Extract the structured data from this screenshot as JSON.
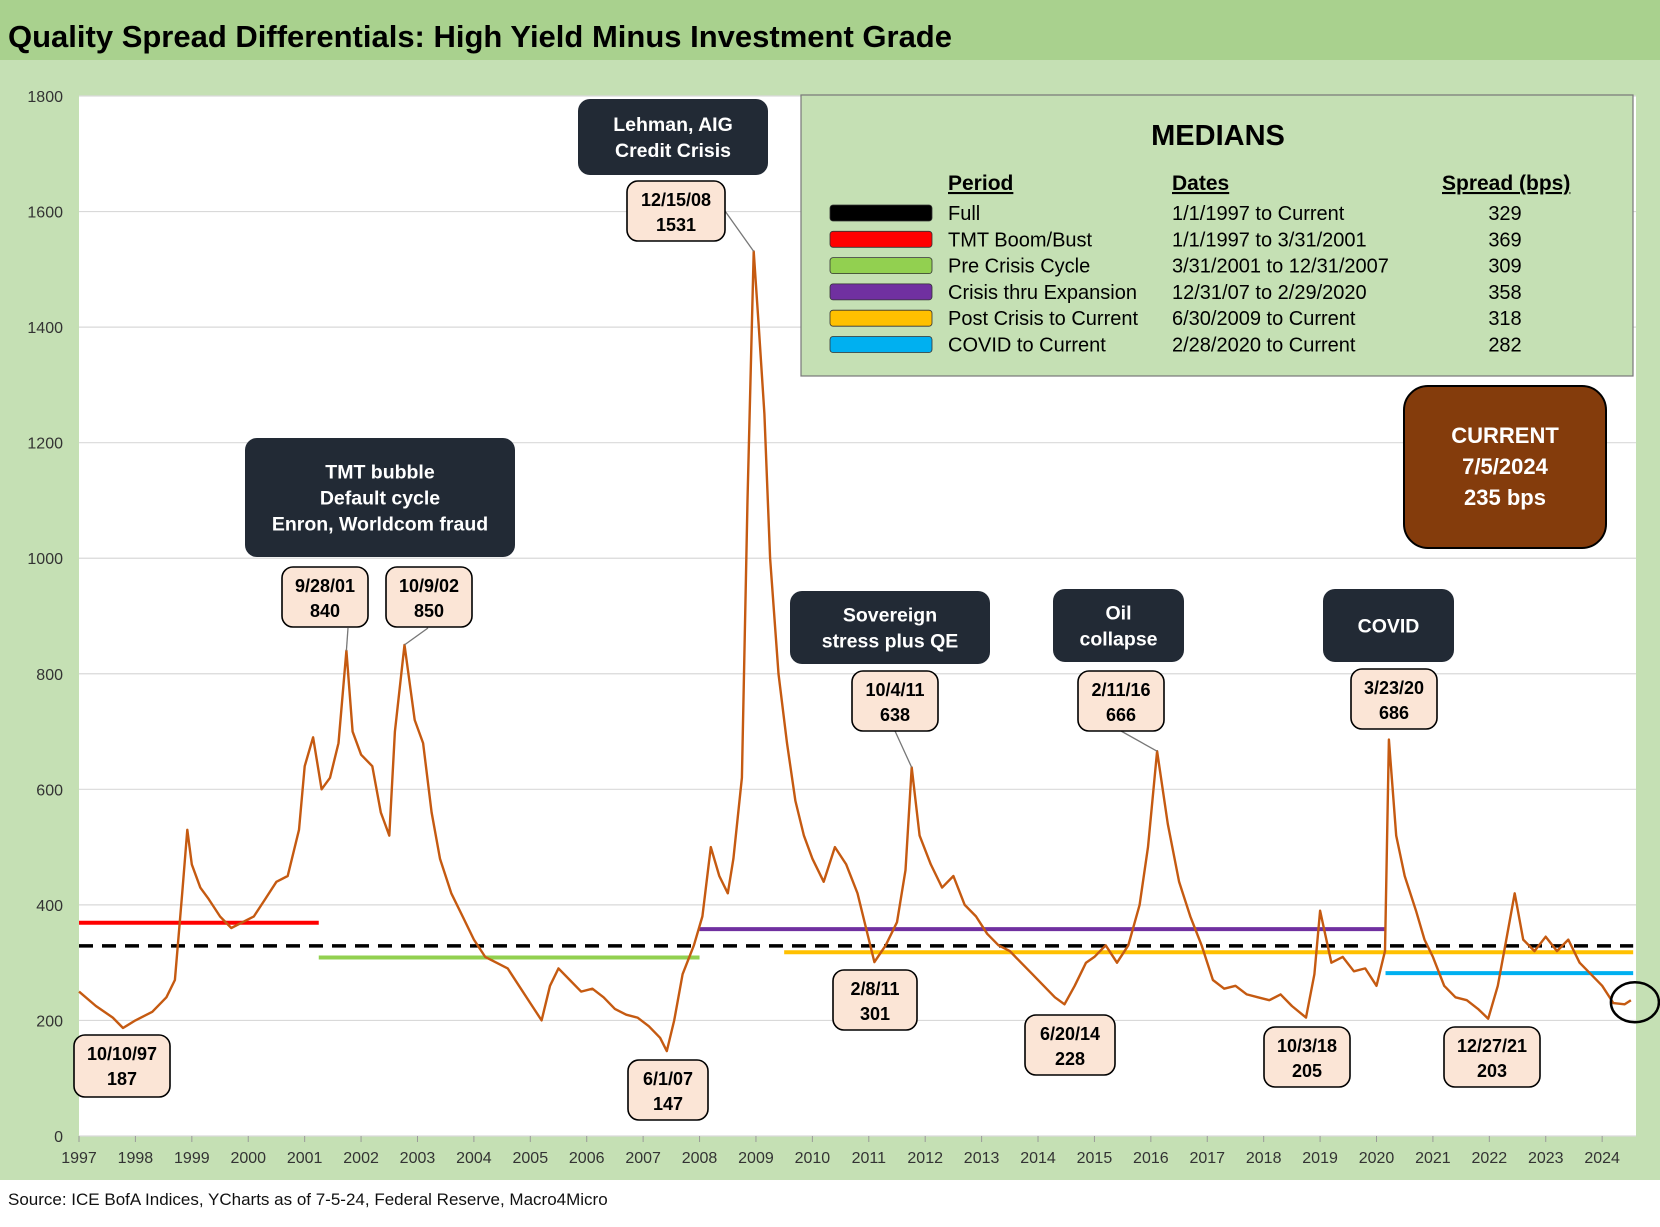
{
  "title": "Quality Spread Differentials: High Yield Minus Investment Grade",
  "source": "Source: ICE BofA Indices, YCharts as of 7-5-24, Federal Reserve, Macro4Micro",
  "colors": {
    "header_bg": "#a9d18e",
    "panel_bg": "#c5e0b4",
    "plot_bg": "#ffffff",
    "series": "#c55a11",
    "callout_dark": "#222a35",
    "label_bg": "#fbe5d6",
    "current_bg": "#843c0c"
  },
  "chart_data": {
    "type": "line",
    "xlabel": "",
    "ylabel": "",
    "ylim": [
      0,
      1800
    ],
    "xlim": [
      1997,
      2024.6
    ],
    "yticks": [
      "0",
      "200",
      "400",
      "600",
      "800",
      "1000",
      "1200",
      "1400",
      "1600",
      "1800"
    ],
    "xticks": [
      "1997",
      "1998",
      "1999",
      "2000",
      "2001",
      "2002",
      "2003",
      "2004",
      "2005",
      "2006",
      "2007",
      "2008",
      "2009",
      "2010",
      "2011",
      "2012",
      "2013",
      "2014",
      "2015",
      "2016",
      "2017",
      "2018",
      "2019",
      "2020",
      "2021",
      "2022",
      "2023",
      "2024"
    ],
    "grid": true,
    "series": [
      {
        "color": "#c55a11",
        "points": [
          [
            1997.0,
            250
          ],
          [
            1997.3,
            225
          ],
          [
            1997.6,
            205
          ],
          [
            1997.78,
            187
          ],
          [
            1998.0,
            200
          ],
          [
            1998.3,
            215
          ],
          [
            1998.55,
            240
          ],
          [
            1998.7,
            270
          ],
          [
            1998.83,
            420
          ],
          [
            1998.92,
            530
          ],
          [
            1999.0,
            470
          ],
          [
            1999.15,
            430
          ],
          [
            1999.3,
            410
          ],
          [
            1999.5,
            380
          ],
          [
            1999.7,
            360
          ],
          [
            1999.9,
            370
          ],
          [
            2000.1,
            380
          ],
          [
            2000.3,
            410
          ],
          [
            2000.5,
            440
          ],
          [
            2000.7,
            450
          ],
          [
            2000.9,
            530
          ],
          [
            2001.0,
            640
          ],
          [
            2001.15,
            690
          ],
          [
            2001.3,
            600
          ],
          [
            2001.45,
            620
          ],
          [
            2001.6,
            680
          ],
          [
            2001.74,
            840
          ],
          [
            2001.85,
            700
          ],
          [
            2002.0,
            660
          ],
          [
            2002.2,
            640
          ],
          [
            2002.35,
            560
          ],
          [
            2002.5,
            520
          ],
          [
            2002.6,
            700
          ],
          [
            2002.77,
            850
          ],
          [
            2002.95,
            720
          ],
          [
            2003.1,
            680
          ],
          [
            2003.25,
            560
          ],
          [
            2003.4,
            480
          ],
          [
            2003.6,
            420
          ],
          [
            2003.8,
            380
          ],
          [
            2004.0,
            340
          ],
          [
            2004.2,
            310
          ],
          [
            2004.4,
            300
          ],
          [
            2004.6,
            290
          ],
          [
            2004.8,
            260
          ],
          [
            2005.0,
            230
          ],
          [
            2005.2,
            200
          ],
          [
            2005.35,
            260
          ],
          [
            2005.5,
            290
          ],
          [
            2005.7,
            270
          ],
          [
            2005.9,
            250
          ],
          [
            2006.1,
            255
          ],
          [
            2006.3,
            240
          ],
          [
            2006.5,
            220
          ],
          [
            2006.7,
            210
          ],
          [
            2006.9,
            205
          ],
          [
            2007.1,
            190
          ],
          [
            2007.3,
            170
          ],
          [
            2007.42,
            147
          ],
          [
            2007.55,
            200
          ],
          [
            2007.7,
            280
          ],
          [
            2007.9,
            330
          ],
          [
            2008.05,
            380
          ],
          [
            2008.2,
            500
          ],
          [
            2008.35,
            450
          ],
          [
            2008.5,
            420
          ],
          [
            2008.6,
            480
          ],
          [
            2008.75,
            620
          ],
          [
            2008.85,
            1100
          ],
          [
            2008.96,
            1531
          ],
          [
            2009.05,
            1400
          ],
          [
            2009.15,
            1250
          ],
          [
            2009.25,
            1000
          ],
          [
            2009.4,
            800
          ],
          [
            2009.55,
            680
          ],
          [
            2009.7,
            580
          ],
          [
            2009.85,
            520
          ],
          [
            2010.0,
            480
          ],
          [
            2010.2,
            440
          ],
          [
            2010.4,
            500
          ],
          [
            2010.6,
            470
          ],
          [
            2010.8,
            420
          ],
          [
            2010.95,
            360
          ],
          [
            2011.1,
            301
          ],
          [
            2011.3,
            330
          ],
          [
            2011.5,
            370
          ],
          [
            2011.65,
            460
          ],
          [
            2011.76,
            638
          ],
          [
            2011.9,
            520
          ],
          [
            2012.1,
            470
          ],
          [
            2012.3,
            430
          ],
          [
            2012.5,
            450
          ],
          [
            2012.7,
            400
          ],
          [
            2012.9,
            380
          ],
          [
            2013.1,
            350
          ],
          [
            2013.3,
            330
          ],
          [
            2013.5,
            320
          ],
          [
            2013.7,
            300
          ],
          [
            2013.9,
            280
          ],
          [
            2014.1,
            260
          ],
          [
            2014.3,
            240
          ],
          [
            2014.47,
            228
          ],
          [
            2014.65,
            260
          ],
          [
            2014.85,
            300
          ],
          [
            2015.0,
            310
          ],
          [
            2015.2,
            330
          ],
          [
            2015.4,
            300
          ],
          [
            2015.6,
            330
          ],
          [
            2015.8,
            400
          ],
          [
            2015.95,
            500
          ],
          [
            2016.11,
            666
          ],
          [
            2016.3,
            540
          ],
          [
            2016.5,
            440
          ],
          [
            2016.7,
            380
          ],
          [
            2016.9,
            330
          ],
          [
            2017.1,
            270
          ],
          [
            2017.3,
            255
          ],
          [
            2017.5,
            260
          ],
          [
            2017.7,
            245
          ],
          [
            2017.9,
            240
          ],
          [
            2018.1,
            235
          ],
          [
            2018.3,
            245
          ],
          [
            2018.5,
            225
          ],
          [
            2018.75,
            205
          ],
          [
            2018.9,
            280
          ],
          [
            2019.0,
            390
          ],
          [
            2019.2,
            300
          ],
          [
            2019.4,
            310
          ],
          [
            2019.6,
            285
          ],
          [
            2019.8,
            290
          ],
          [
            2020.0,
            260
          ],
          [
            2020.15,
            320
          ],
          [
            2020.22,
            686
          ],
          [
            2020.35,
            520
          ],
          [
            2020.5,
            450
          ],
          [
            2020.7,
            390
          ],
          [
            2020.85,
            340
          ],
          [
            2021.0,
            310
          ],
          [
            2021.2,
            260
          ],
          [
            2021.4,
            240
          ],
          [
            2021.6,
            235
          ],
          [
            2021.8,
            220
          ],
          [
            2021.98,
            203
          ],
          [
            2022.15,
            260
          ],
          [
            2022.3,
            340
          ],
          [
            2022.45,
            420
          ],
          [
            2022.6,
            340
          ],
          [
            2022.8,
            320
          ],
          [
            2023.0,
            345
          ],
          [
            2023.2,
            320
          ],
          [
            2023.4,
            340
          ],
          [
            2023.6,
            300
          ],
          [
            2023.8,
            280
          ],
          [
            2024.0,
            260
          ],
          [
            2024.2,
            230
          ],
          [
            2024.4,
            228
          ],
          [
            2024.51,
            235
          ]
        ]
      }
    ],
    "median_lines": [
      {
        "label": "Full",
        "color": "#000000",
        "value": 329,
        "start": 1997.0,
        "end": 2024.55,
        "dashed": true
      },
      {
        "label": "TMT Boom/Bust",
        "color": "#ff0000",
        "value": 369,
        "start": 1997.0,
        "end": 2001.25,
        "dashed": false
      },
      {
        "label": "Pre Crisis Cycle",
        "color": "#92d050",
        "value": 309,
        "start": 2001.25,
        "end": 2008.0,
        "dashed": false
      },
      {
        "label": "Crisis thru Expansion",
        "color": "#7030a0",
        "value": 358,
        "start": 2008.0,
        "end": 2020.16,
        "dashed": false
      },
      {
        "label": "Post Crisis to Current",
        "color": "#ffc000",
        "value": 318,
        "start": 2009.5,
        "end": 2024.55,
        "dashed": false
      },
      {
        "label": "COVID to Current",
        "color": "#00b0f0",
        "value": 282,
        "start": 2020.16,
        "end": 2024.55,
        "dashed": false
      }
    ],
    "point_labels": [
      {
        "date": "10/10/97",
        "value_text": "187",
        "x": 1997.78,
        "y": 187
      },
      {
        "date": "9/28/01",
        "value_text": "840",
        "x": 2001.74,
        "y": 840
      },
      {
        "date": "10/9/02",
        "value_text": "850",
        "x": 2002.77,
        "y": 850
      },
      {
        "date": "6/1/07",
        "value_text": "147",
        "x": 2007.42,
        "y": 147
      },
      {
        "date": "12/15/08",
        "value_text": "1531",
        "x": 2008.96,
        "y": 1531
      },
      {
        "date": "2/8/11",
        "value_text": "301",
        "x": 2011.1,
        "y": 301
      },
      {
        "date": "10/4/11",
        "value_text": "638",
        "x": 2011.76,
        "y": 638
      },
      {
        "date": "6/20/14",
        "value_text": "228",
        "x": 2014.47,
        "y": 228
      },
      {
        "date": "2/11/16",
        "value_text": "666",
        "x": 2016.11,
        "y": 666
      },
      {
        "date": "10/3/18",
        "value_text": "205",
        "x": 2018.75,
        "y": 205
      },
      {
        "date": "3/23/20",
        "value_text": "686",
        "x": 2020.22,
        "y": 686
      },
      {
        "date": "12/27/21",
        "value_text": "203",
        "x": 2021.98,
        "y": 203
      }
    ],
    "event_callouts": [
      {
        "lines": [
          "Lehman, AIG",
          "Credit Crisis"
        ]
      },
      {
        "lines": [
          "TMT bubble",
          "Default cycle",
          "Enron, Worldcom fraud"
        ]
      },
      {
        "lines": [
          "Sovereign",
          "stress plus QE"
        ]
      },
      {
        "lines": [
          "Oil",
          "collapse"
        ]
      },
      {
        "lines": [
          "COVID"
        ]
      }
    ],
    "medians_table": {
      "title": "MEDIANS",
      "headers": [
        "Period",
        "Dates",
        "Spread (bps)"
      ],
      "rows": [
        {
          "period": "Full",
          "dates": "1/1/1997 to Current",
          "spread": "329",
          "color": "#000000"
        },
        {
          "period": "TMT Boom/Bust",
          "dates": "1/1/1997 to 3/31/2001",
          "spread": "369",
          "color": "#ff0000"
        },
        {
          "period": "Pre Crisis Cycle",
          "dates": "3/31/2001 to 12/31/2007",
          "spread": "309",
          "color": "#92d050"
        },
        {
          "period": "Crisis thru Expansion",
          "dates": "12/31/07 to 2/29/2020",
          "spread": "358",
          "color": "#7030a0"
        },
        {
          "period": "Post Crisis to Current",
          "dates": "6/30/2009 to Current",
          "spread": "318",
          "color": "#ffc000"
        },
        {
          "period": "COVID to Current",
          "dates": "2/28/2020 to Current",
          "spread": "282",
          "color": "#00b0f0"
        }
      ]
    },
    "current_box": {
      "lines": [
        "CURRENT",
        "7/5/2024",
        "235 bps"
      ]
    }
  }
}
